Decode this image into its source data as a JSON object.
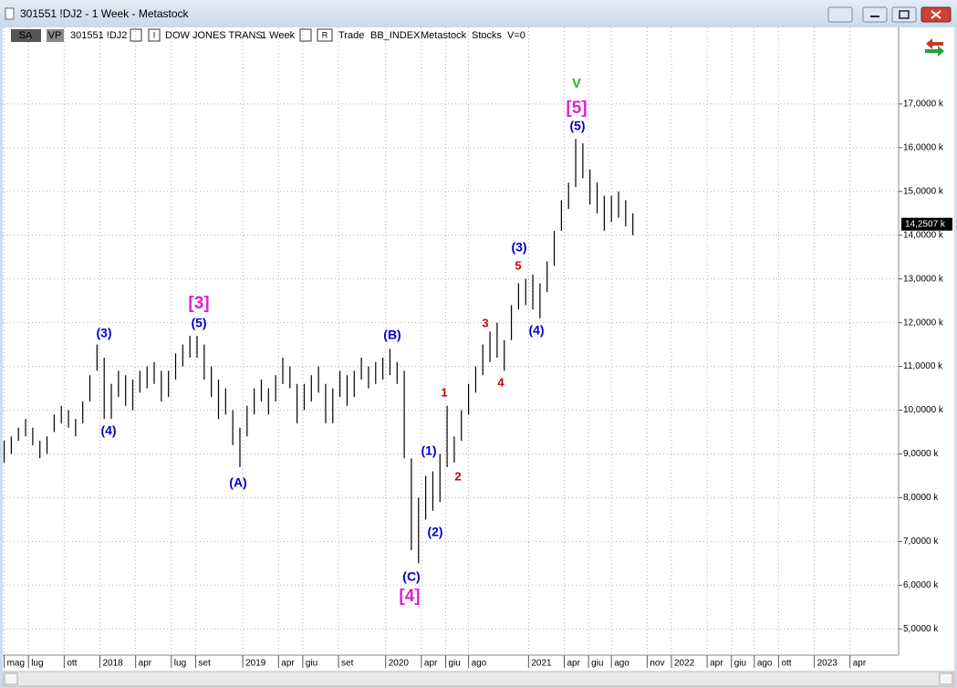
{
  "window": {
    "title": "301551 !DJ2 - 1 Week - Metastock",
    "toolbar": [
      "SA",
      "VP",
      "301551 !DJ2",
      "DOW JONES TRANS",
      "1 Week",
      "Trade",
      "BB_INDEX",
      "Metastock",
      "Stocks",
      "V=0"
    ]
  },
  "chart_data": {
    "type": "hlbar",
    "color": "#000000",
    "grid": true,
    "x": [
      2017.33,
      2017.38,
      2017.43,
      2017.48,
      2017.53,
      2017.58,
      2017.63,
      2017.68,
      2017.73,
      2017.78,
      2017.83,
      2017.88,
      2017.93,
      2017.98,
      2018.03,
      2018.08,
      2018.13,
      2018.18,
      2018.23,
      2018.28,
      2018.33,
      2018.38,
      2018.43,
      2018.48,
      2018.53,
      2018.58,
      2018.63,
      2018.68,
      2018.73,
      2018.78,
      2018.83,
      2018.88,
      2018.93,
      2018.98,
      2019.03,
      2019.08,
      2019.13,
      2019.18,
      2019.23,
      2019.28,
      2019.33,
      2019.38,
      2019.43,
      2019.48,
      2019.53,
      2019.58,
      2019.63,
      2019.68,
      2019.73,
      2019.78,
      2019.83,
      2019.88,
      2019.93,
      2019.98,
      2020.03,
      2020.08,
      2020.13,
      2020.18,
      2020.23,
      2020.28,
      2020.33,
      2020.38,
      2020.43,
      2020.48,
      2020.53,
      2020.58,
      2020.63,
      2020.68,
      2020.73,
      2020.78,
      2020.83,
      2020.88,
      2020.93,
      2020.98,
      2021.03,
      2021.08,
      2021.13,
      2021.18,
      2021.23,
      2021.28,
      2021.33,
      2021.38,
      2021.43,
      2021.48,
      2021.53,
      2021.58,
      2021.63,
      2021.68,
      2021.73
    ],
    "high": [
      9300,
      9400,
      9600,
      9800,
      9600,
      9300,
      9400,
      9900,
      10100,
      10000,
      9800,
      10200,
      10800,
      11500,
      11200,
      10600,
      10900,
      10800,
      10700,
      10900,
      11000,
      11100,
      10900,
      10900,
      11300,
      11500,
      11700,
      11700,
      11500,
      11000,
      10700,
      10500,
      10000,
      9600,
      10100,
      10500,
      10700,
      10500,
      10800,
      11200,
      11000,
      10600,
      10600,
      10800,
      11000,
      10600,
      10500,
      10900,
      10800,
      10900,
      11200,
      11000,
      11100,
      11200,
      11400,
      11100,
      10900,
      8900,
      8000,
      8500,
      8600,
      9000,
      10100,
      9400,
      10000,
      10600,
      11000,
      11500,
      11800,
      12000,
      11600,
      12400,
      12900,
      13000,
      13100,
      12900,
      13400,
      14100,
      14800,
      15200,
      16200,
      16100,
      15500,
      15200,
      14900,
      14900,
      15000,
      14800,
      14500
    ],
    "low": [
      8800,
      9000,
      9300,
      9400,
      9200,
      8900,
      9000,
      9500,
      9700,
      9600,
      9400,
      9700,
      10200,
      10900,
      9800,
      9800,
      10300,
      10100,
      10000,
      10400,
      10500,
      10600,
      10200,
      10300,
      10700,
      11000,
      11200,
      11200,
      10700,
      10300,
      9800,
      9900,
      9200,
      8700,
      9400,
      9900,
      10200,
      9900,
      10200,
      10600,
      10500,
      9700,
      10000,
      10200,
      10400,
      9700,
      9700,
      10300,
      10100,
      10300,
      10700,
      10500,
      10600,
      10700,
      10800,
      10600,
      8900,
      6800,
      6500,
      7500,
      7700,
      7900,
      8700,
      8800,
      9300,
      9900,
      10400,
      10800,
      11100,
      11200,
      10900,
      11600,
      12300,
      12400,
      12300,
      12100,
      12700,
      13300,
      14100,
      14600,
      15100,
      15300,
      14700,
      14500,
      14100,
      14300,
      14400,
      14200,
      14000
    ],
    "xlim": [
      2017.32,
      2023.59
    ],
    "ylim": [
      4400,
      18750
    ],
    "xticks": [
      {
        "value": 2017.33,
        "label": "mag"
      },
      {
        "value": 2017.5,
        "label": "lug"
      },
      {
        "value": 2017.75,
        "label": "ott"
      },
      2018,
      {
        "value": 2018.25,
        "label": "apr"
      },
      {
        "value": 2018.5,
        "label": "lug"
      },
      {
        "value": 2018.67,
        "label": "set"
      },
      2019,
      {
        "value": 2019.25,
        "label": "apr"
      },
      {
        "value": 2019.42,
        "label": "giu"
      },
      {
        "value": 2019.67,
        "label": "set"
      },
      2020,
      {
        "value": 2020.25,
        "label": "apr"
      },
      {
        "value": 2020.42,
        "label": "giu"
      },
      {
        "value": 2020.58,
        "label": "ago"
      },
      2021,
      {
        "value": 2021.25,
        "label": "apr"
      },
      {
        "value": 2021.42,
        "label": "giu"
      },
      {
        "value": 2021.58,
        "label": "ago"
      },
      {
        "value": 2021.83,
        "label": "nov"
      },
      2022,
      {
        "value": 2022.25,
        "label": "apr"
      },
      {
        "value": 2022.42,
        "label": "giu"
      },
      {
        "value": 2022.58,
        "label": "ago"
      },
      {
        "value": 2022.75,
        "label": "ott"
      },
      2023,
      {
        "value": 2023.25,
        "label": "apr"
      }
    ],
    "yticks": [
      {
        "value": 5000,
        "label": "5,0000 k"
      },
      {
        "value": 6000,
        "label": "6,0000 k"
      },
      {
        "value": 7000,
        "label": "7,0000 k"
      },
      {
        "value": 8000,
        "label": "8,0000 k"
      },
      {
        "value": 9000,
        "label": "9,0000 k"
      },
      {
        "value": 10000,
        "label": "10,0000 k"
      },
      {
        "value": 11000,
        "label": "11,0000 k"
      },
      {
        "value": 12000,
        "label": "12,0000 k"
      },
      {
        "value": 13000,
        "label": "13,0000 k"
      },
      {
        "value": 14000,
        "label": "14,0000 k"
      },
      {
        "value": 15000,
        "label": "15,0000 k"
      },
      {
        "value": 16000,
        "label": "16,0000 k"
      },
      {
        "value": 17000,
        "label": "17,0000 k"
      }
    ],
    "last_price": {
      "value": 14250.7,
      "label": "14,2507 k"
    },
    "annotations": [
      {
        "text": "(3)",
        "color": "#0000cc"
      },
      {
        "text": "(4)",
        "color": "#0000cc"
      },
      {
        "text": "[3]",
        "color": "#e020d0"
      },
      {
        "text": "(5)",
        "color": "#0000cc"
      },
      {
        "text": "(A)",
        "color": "#0000cc"
      },
      {
        "text": "(B)",
        "color": "#0000cc"
      },
      {
        "text": "(C)",
        "color": "#0000cc"
      },
      {
        "text": "[4]",
        "color": "#e020d0"
      },
      {
        "text": "(1)",
        "color": "#0000cc"
      },
      {
        "text": "(2)",
        "color": "#0000cc"
      },
      {
        "text": "1",
        "color": "#cc0000"
      },
      {
        "text": "2",
        "color": "#cc0000"
      },
      {
        "text": "3",
        "color": "#cc0000"
      },
      {
        "text": "4",
        "color": "#cc0000"
      },
      {
        "text": "5",
        "color": "#cc0000"
      },
      {
        "text": "(3)",
        "color": "#0000cc"
      },
      {
        "text": "(4)",
        "color": "#0000cc"
      },
      {
        "text": "V",
        "color": "#22bb22"
      },
      {
        "text": "[5]",
        "color": "#e020d0"
      },
      {
        "text": "(5)",
        "color": "#0000cc"
      }
    ]
  }
}
